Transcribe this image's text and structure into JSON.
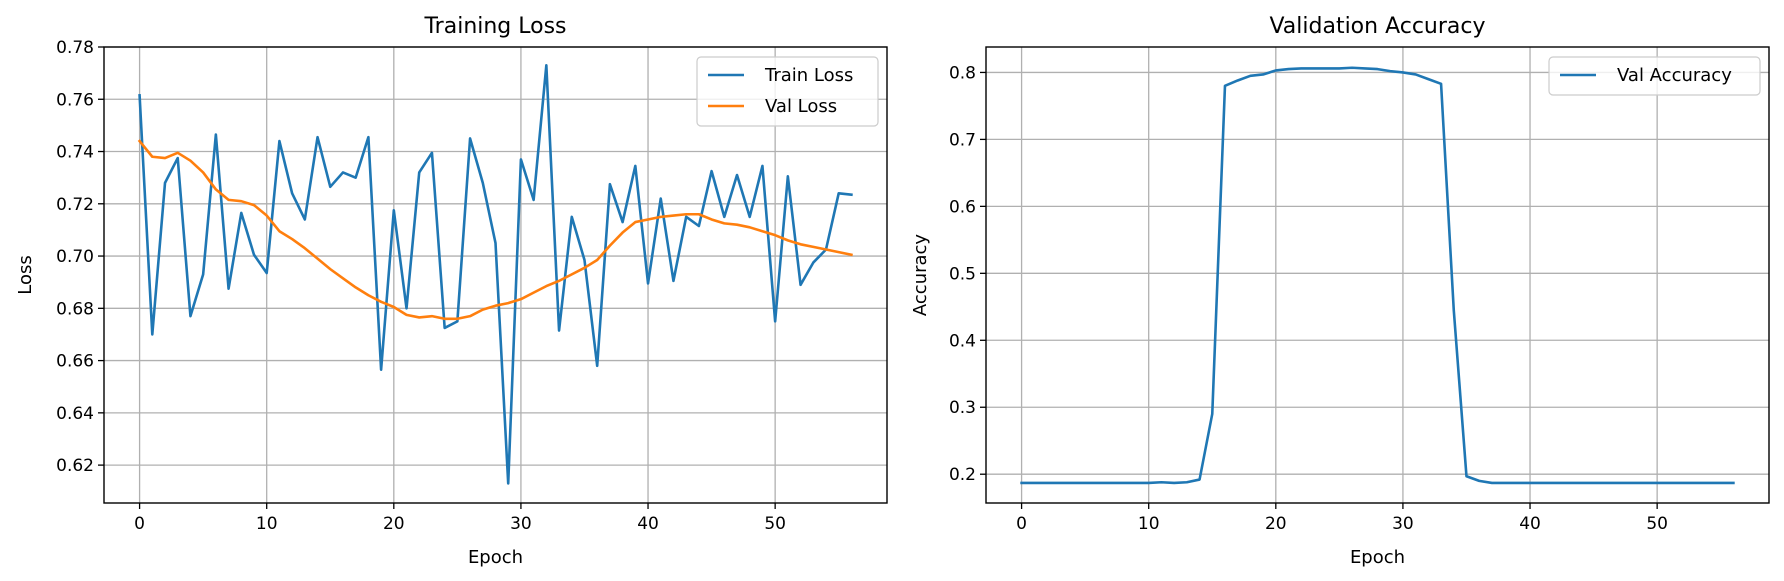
{
  "chart_data": [
    {
      "type": "line",
      "title": "Training Loss",
      "xlabel": "Epoch",
      "ylabel": "Loss",
      "xlim": [
        -2.8,
        58.8
      ],
      "ylim": [
        0.6055,
        0.78
      ],
      "xticks": [
        0,
        10,
        20,
        30,
        40,
        50
      ],
      "yticks": [
        0.62,
        0.64,
        0.66,
        0.68,
        0.7,
        0.72,
        0.74,
        0.76,
        0.78
      ],
      "ytick_labels": [
        "0.62",
        "0.64",
        "0.66",
        "0.68",
        "0.70",
        "0.72",
        "0.74",
        "0.76",
        "0.78"
      ],
      "grid": true,
      "legend_position": "upper right",
      "series": [
        {
          "name": "Train Loss",
          "color": "#1f77b4",
          "x": [
            0,
            1,
            2,
            3,
            4,
            5,
            6,
            7,
            8,
            9,
            10,
            11,
            12,
            13,
            14,
            15,
            16,
            17,
            18,
            19,
            20,
            21,
            22,
            23,
            24,
            25,
            26,
            27,
            28,
            29,
            30,
            31,
            32,
            33,
            34,
            35,
            36,
            37,
            38,
            39,
            40,
            41,
            42,
            43,
            44,
            45,
            46,
            47,
            48,
            49,
            50,
            51,
            52,
            53,
            54,
            55,
            56
          ],
          "values": [
            0.7615,
            0.67,
            0.728,
            0.7375,
            0.677,
            0.693,
            0.7465,
            0.6875,
            0.7165,
            0.7005,
            0.6935,
            0.744,
            0.724,
            0.714,
            0.7455,
            0.7265,
            0.732,
            0.73,
            0.7455,
            0.6565,
            0.7175,
            0.68,
            0.732,
            0.7395,
            0.6725,
            0.675,
            0.745,
            0.728,
            0.705,
            0.613,
            0.737,
            0.7215,
            0.773,
            0.6715,
            0.715,
            0.6985,
            0.658,
            0.7275,
            0.713,
            0.7345,
            0.6895,
            0.722,
            0.6905,
            0.715,
            0.7115,
            0.7325,
            0.715,
            0.731,
            0.715,
            0.7345,
            0.675,
            0.7305,
            0.689,
            0.6975,
            0.7025,
            0.724,
            0.7235
          ]
        },
        {
          "name": "Val Loss",
          "color": "#ff7f0e",
          "x": [
            0,
            1,
            2,
            3,
            4,
            5,
            6,
            7,
            8,
            9,
            10,
            11,
            12,
            13,
            14,
            15,
            16,
            17,
            18,
            19,
            20,
            21,
            22,
            23,
            24,
            25,
            26,
            27,
            28,
            29,
            30,
            31,
            32,
            33,
            34,
            35,
            36,
            37,
            38,
            39,
            40,
            41,
            42,
            43,
            44,
            45,
            46,
            47,
            48,
            49,
            50,
            51,
            52,
            53,
            54,
            55,
            56
          ],
          "values": [
            0.744,
            0.738,
            0.7375,
            0.7395,
            0.7365,
            0.732,
            0.7255,
            0.7215,
            0.721,
            0.7195,
            0.7155,
            0.7095,
            0.7065,
            0.703,
            0.699,
            0.695,
            0.6915,
            0.688,
            0.685,
            0.6825,
            0.6805,
            0.6775,
            0.6765,
            0.677,
            0.676,
            0.676,
            0.677,
            0.6795,
            0.681,
            0.682,
            0.6835,
            0.686,
            0.6885,
            0.6905,
            0.693,
            0.6955,
            0.6985,
            0.704,
            0.709,
            0.713,
            0.714,
            0.715,
            0.7155,
            0.716,
            0.716,
            0.714,
            0.7125,
            0.712,
            0.711,
            0.7095,
            0.708,
            0.706,
            0.7045,
            0.7035,
            0.7025,
            0.7015,
            0.7005
          ]
        }
      ]
    },
    {
      "type": "line",
      "title": "Validation Accuracy",
      "xlabel": "Epoch",
      "ylabel": "Accuracy",
      "xlim": [
        -2.8,
        58.8
      ],
      "ylim": [
        0.157,
        0.838
      ],
      "xticks": [
        0,
        10,
        20,
        30,
        40,
        50
      ],
      "yticks": [
        0.2,
        0.3,
        0.4,
        0.5,
        0.6,
        0.7,
        0.8
      ],
      "ytick_labels": [
        "0.2",
        "0.3",
        "0.4",
        "0.5",
        "0.6",
        "0.7",
        "0.8"
      ],
      "grid": true,
      "legend_position": "upper right",
      "series": [
        {
          "name": "Val Accuracy",
          "color": "#1f77b4",
          "x": [
            0,
            1,
            2,
            3,
            4,
            5,
            6,
            7,
            8,
            9,
            10,
            11,
            12,
            13,
            14,
            15,
            16,
            17,
            18,
            19,
            20,
            21,
            22,
            23,
            24,
            25,
            26,
            27,
            28,
            29,
            30,
            31,
            32,
            33,
            34,
            35,
            36,
            37,
            38,
            39,
            40,
            41,
            42,
            43,
            44,
            45,
            46,
            47,
            48,
            49,
            50,
            51,
            52,
            53,
            54,
            55,
            56
          ],
          "values": [
            0.187,
            0.187,
            0.187,
            0.187,
            0.187,
            0.187,
            0.187,
            0.187,
            0.187,
            0.187,
            0.187,
            0.188,
            0.187,
            0.188,
            0.192,
            0.29,
            0.78,
            0.788,
            0.795,
            0.797,
            0.803,
            0.805,
            0.806,
            0.806,
            0.806,
            0.806,
            0.807,
            0.806,
            0.805,
            0.802,
            0.8,
            0.797,
            0.79,
            0.783,
            0.445,
            0.197,
            0.19,
            0.187,
            0.187,
            0.187,
            0.187,
            0.187,
            0.187,
            0.187,
            0.187,
            0.187,
            0.187,
            0.187,
            0.187,
            0.187,
            0.187,
            0.187,
            0.187,
            0.187,
            0.187,
            0.187,
            0.187
          ]
        }
      ]
    }
  ]
}
